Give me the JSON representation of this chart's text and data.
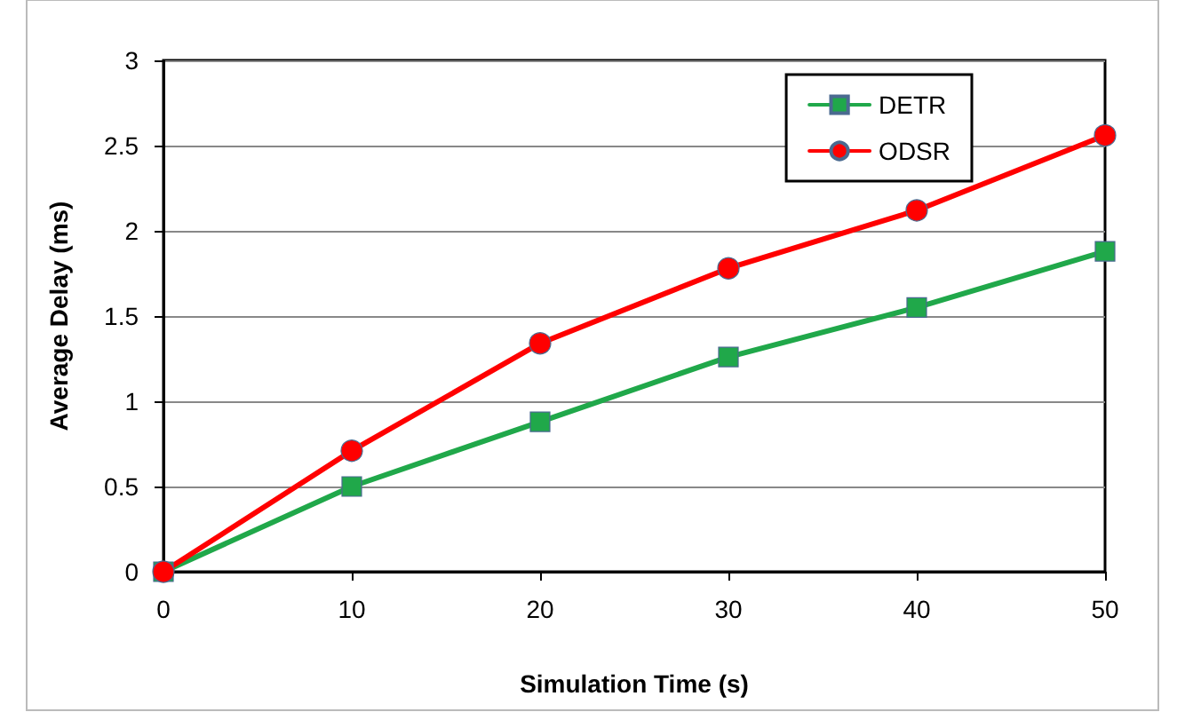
{
  "chart_data": {
    "type": "line",
    "xlabel": "Simulation Time (s)",
    "ylabel": "Average Delay (ms)",
    "x": [
      0,
      10,
      20,
      30,
      40,
      50
    ],
    "series": [
      {
        "name": "DETR",
        "color": "#20a84a",
        "marker": "square",
        "values": [
          0,
          0.5,
          0.88,
          1.26,
          1.55,
          1.88
        ]
      },
      {
        "name": "ODSR",
        "color": "#ff0000",
        "marker": "circle",
        "values": [
          0,
          0.71,
          1.34,
          1.78,
          2.12,
          2.56
        ]
      }
    ],
    "xlim": [
      0,
      50
    ],
    "xticks": [
      0,
      10,
      20,
      30,
      40,
      50
    ],
    "ylim": [
      0,
      3
    ],
    "yticks": [
      0,
      0.5,
      1,
      1.5,
      2,
      2.5,
      3
    ],
    "grid": "y",
    "legend": "top right",
    "line_style": "solid"
  }
}
